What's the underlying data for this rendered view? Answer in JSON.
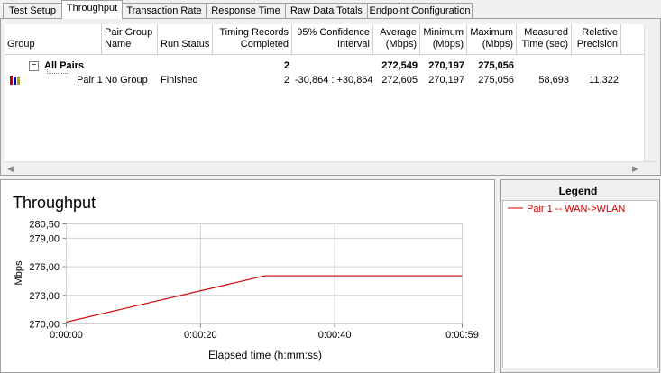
{
  "tabs": [
    "Test Setup",
    "Throughput",
    "Transaction Rate",
    "Response Time",
    "Raw Data Totals",
    "Endpoint Configuration"
  ],
  "table": {
    "columns": [
      {
        "key": "group",
        "lines": [
          "Group"
        ]
      },
      {
        "key": "pair_group_name",
        "lines": [
          "Pair Group",
          "Name"
        ]
      },
      {
        "key": "run_status",
        "lines": [
          "Run Status"
        ]
      },
      {
        "key": "records",
        "lines": [
          "Timing Records",
          "Completed"
        ]
      },
      {
        "key": "confidence",
        "lines": [
          "95% Confidence",
          "Interval"
        ]
      },
      {
        "key": "average",
        "lines": [
          "Average",
          "(Mbps)"
        ]
      },
      {
        "key": "minimum",
        "lines": [
          "Minimum",
          "(Mbps)"
        ]
      },
      {
        "key": "maximum",
        "lines": [
          "Maximum",
          "(Mbps)"
        ]
      },
      {
        "key": "measured_time",
        "lines": [
          "Measured",
          "Time (sec)"
        ]
      },
      {
        "key": "relative_precision",
        "lines": [
          "Relative",
          "Precision"
        ]
      }
    ],
    "rows": [
      {
        "group": "All Pairs",
        "records": "2",
        "average": "272,549",
        "minimum": "270,197",
        "maximum": "275,056"
      },
      {
        "group": "Pair 1",
        "pair_group_name": "No Group",
        "run_status": "Finished",
        "records": "2",
        "confidence": "-30,864 : +30,864",
        "average": "272,605",
        "minimum": "270,197",
        "maximum": "275,056",
        "measured_time": "58,693",
        "relative_precision": "11,322"
      }
    ]
  },
  "chart": {
    "type": "line",
    "title": "Throughput",
    "ylabel": "Mbps",
    "xlabel": "Elapsed time (h:mm:ss)",
    "x": [
      0,
      29.6,
      59
    ],
    "series": [
      {
        "name": "Pair 1 -- WAN->WLAN",
        "color": "#cc0000",
        "values": [
          270.197,
          275.056,
          275.056
        ]
      }
    ],
    "xlim": [
      0,
      59
    ],
    "ylim": [
      270,
      280.5
    ],
    "xticks": [
      {
        "value": 0,
        "label": "0:00:00"
      },
      {
        "value": 20,
        "label": "0:00:20"
      },
      {
        "value": 40,
        "label": "0:00:40"
      },
      {
        "value": 59,
        "label": "0:00:59"
      }
    ],
    "yticks": [
      {
        "value": 270,
        "label": "270,00"
      },
      {
        "value": 273,
        "label": "273,00"
      },
      {
        "value": 276,
        "label": "276,00"
      },
      {
        "value": 279,
        "label": "279,00"
      },
      {
        "value": 280.5,
        "label": "280,50"
      }
    ],
    "grid": true,
    "legend_title": "Legend"
  }
}
